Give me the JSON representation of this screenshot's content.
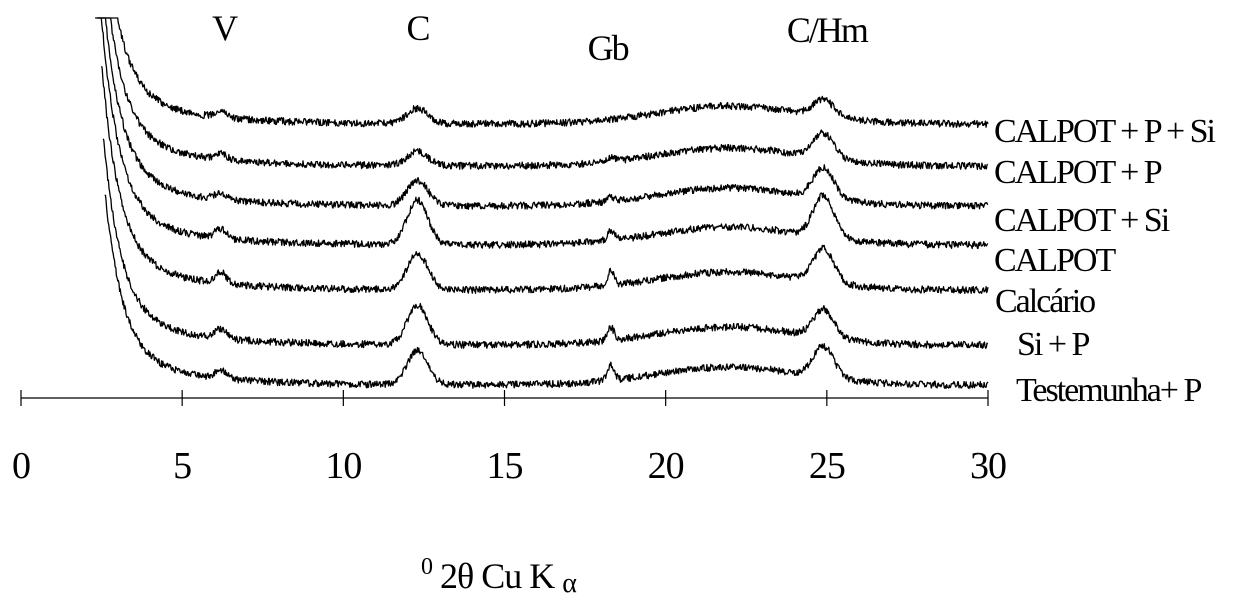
{
  "chart_data": {
    "type": "line",
    "title": "",
    "xlabel_parts": [
      "0",
      "2θ Cu K",
      "α"
    ],
    "ylabel": "",
    "xlim": [
      0,
      30
    ],
    "x_ticks": [
      "0",
      "5",
      "10",
      "15",
      "20",
      "25",
      "30"
    ],
    "grid": false,
    "peak_labels": [
      {
        "text": "V",
        "x": 6.3
      },
      {
        "text": "C",
        "x": 12.3
      },
      {
        "text": "Gb",
        "x": 18.2
      },
      {
        "text": "C/Hm",
        "x": 25.0
      }
    ],
    "series": [
      {
        "name": "CALPOT + P + Si",
        "peaks": {
          "V": 0.25,
          "C": 0.55,
          "Gb": 0.0,
          "C/Hm": 0.6
        }
      },
      {
        "name": "CALPOT + P",
        "peaks": {
          "V": 0.2,
          "C": 0.5,
          "Gb": 0.15,
          "C/Hm": 0.9
        }
      },
      {
        "name": "CALPOT + Si",
        "peaks": {
          "V": 0.25,
          "C": 0.9,
          "Gb": 0.15,
          "C/Hm": 1.1
        }
      },
      {
        "name": "CALPOT",
        "peaks": {
          "V": 0.35,
          "C": 1.6,
          "Gb": 0.35,
          "C/Hm": 1.5
        }
      },
      {
        "name": "Calcário",
        "peaks": {
          "V": 0.4,
          "C": 1.3,
          "Gb": 0.5,
          "C/Hm": 1.2
        }
      },
      {
        "name": "Si + P",
        "peaks": {
          "V": 0.35,
          "C": 1.4,
          "Gb": 0.45,
          "C/Hm": 1.0
        }
      },
      {
        "name": "Testemunha+ P",
        "peaks": {
          "V": 0.3,
          "C": 1.2,
          "Gb": 0.55,
          "C/Hm": 1.1
        }
      }
    ]
  }
}
